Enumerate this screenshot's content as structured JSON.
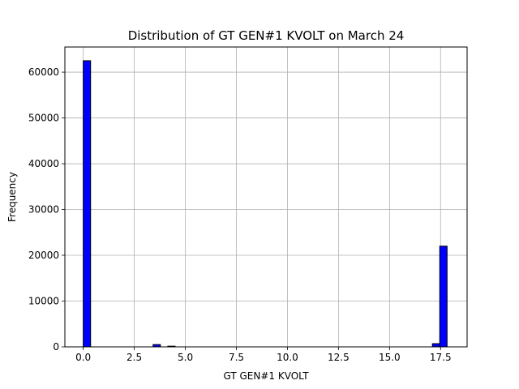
{
  "chart_data": {
    "type": "bar",
    "title": "Distribution of GT GEN#1 KVOLT on March 24",
    "xlabel": "GT GEN#1 KVOLT",
    "ylabel": "Frequency",
    "xlim": [
      -0.9,
      18.8
    ],
    "ylim": [
      0,
      65500
    ],
    "grid": true,
    "xticks": [
      0,
      2.5,
      5,
      7.5,
      10,
      12.5,
      15,
      17.5
    ],
    "xtick_labels": [
      "0.0",
      "2.5",
      "5.0",
      "7.5",
      "10.0",
      "12.5",
      "15.0",
      "17.5"
    ],
    "yticks": [
      0,
      10000,
      20000,
      30000,
      40000,
      50000,
      60000
    ],
    "ytick_labels": [
      "0",
      "10000",
      "20000",
      "30000",
      "40000",
      "50000",
      "60000"
    ],
    "bar_color": "#0000ff",
    "edge_color": "#000000",
    "bins": [
      {
        "x0": 0.0,
        "x1": 0.36,
        "value": 62500
      },
      {
        "x0": 3.42,
        "x1": 3.78,
        "value": 500
      },
      {
        "x0": 4.14,
        "x1": 4.5,
        "value": 150
      },
      {
        "x0": 17.1,
        "x1": 17.46,
        "value": 700
      },
      {
        "x0": 17.46,
        "x1": 17.82,
        "value": 22000
      }
    ]
  }
}
